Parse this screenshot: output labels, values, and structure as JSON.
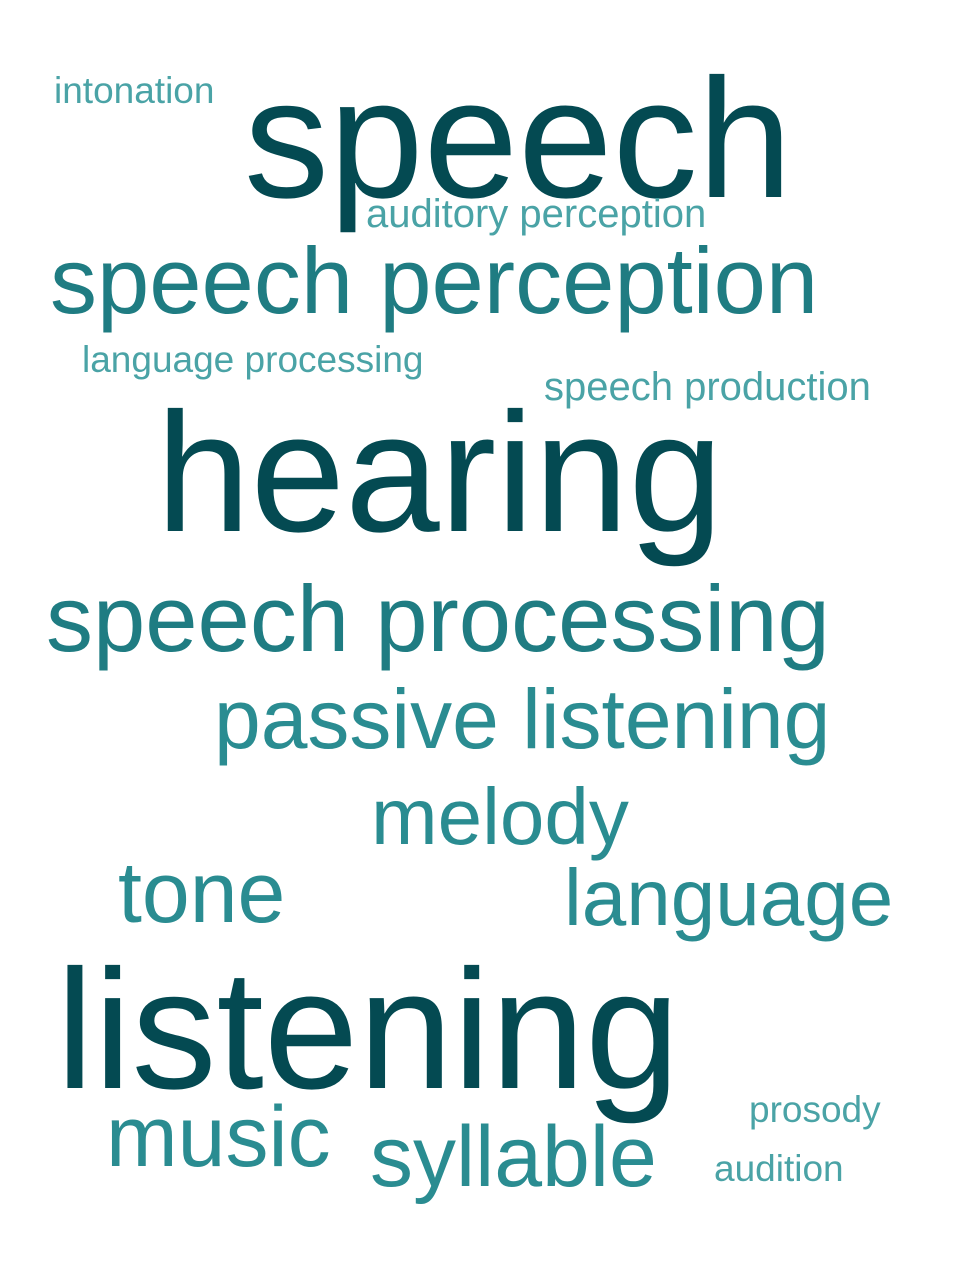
{
  "words": [
    {
      "text": "intonation"
    },
    {
      "text": "speech"
    },
    {
      "text": "auditory perception"
    },
    {
      "text": "speech perception"
    },
    {
      "text": "language processing"
    },
    {
      "text": "speech production"
    },
    {
      "text": "hearing"
    },
    {
      "text": "speech processing"
    },
    {
      "text": "passive listening"
    },
    {
      "text": "melody"
    },
    {
      "text": "tone"
    },
    {
      "text": "language"
    },
    {
      "text": "listening"
    },
    {
      "text": "prosody"
    },
    {
      "text": "music"
    },
    {
      "text": "syllable"
    },
    {
      "text": "audition"
    }
  ]
}
